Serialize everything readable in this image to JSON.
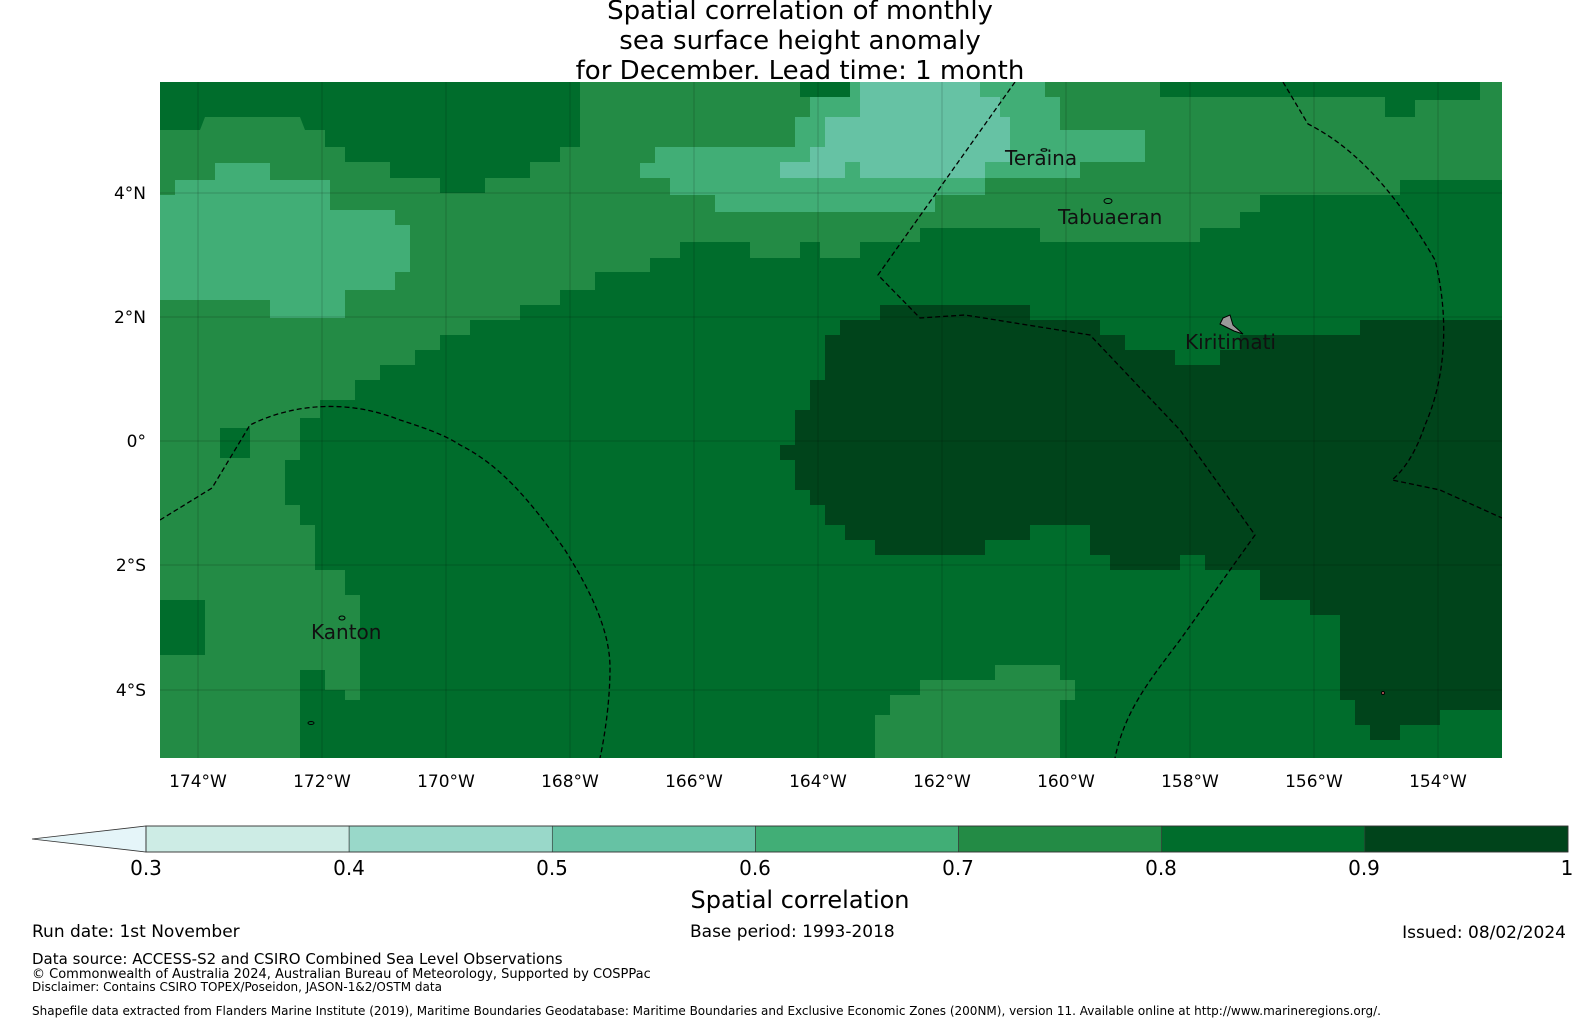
{
  "title": {
    "line1": "Spatial correlation of monthly",
    "line2": "sea surface height anomaly",
    "line3": "for December. Lead time: 1 month"
  },
  "map": {
    "lat_ticks": [
      "4°N",
      "2°N",
      "0°",
      "2°S",
      "4°S"
    ],
    "lon_ticks": [
      "174°W",
      "172°W",
      "170°W",
      "168°W",
      "166°W",
      "164°W",
      "162°W",
      "160°W",
      "158°W",
      "156°W",
      "154°W"
    ],
    "places": [
      {
        "name": "Teraina"
      },
      {
        "name": "Tabuaeran"
      },
      {
        "name": "Kiritimati"
      },
      {
        "name": "Kanton"
      }
    ]
  },
  "colorbar": {
    "label": "Spatial correlation",
    "ticks": [
      "0.3",
      "0.4",
      "0.5",
      "0.6",
      "0.7",
      "0.8",
      "0.9",
      "1"
    ],
    "colors": [
      "#cdece5",
      "#99d8c9",
      "#66c2a4",
      "#41ae76",
      "#238b45",
      "#006d2c",
      "#00441b"
    ],
    "extend_color": "#e5f5f9"
  },
  "footer": {
    "run_date": "Run date: 1st November",
    "base_period": "Base period: 1993-2018",
    "issued": "Issued: 08/02/2024",
    "data_source": "Data source: ACCESS-S2 and CSIRO Combined Sea Level Observations",
    "copyright": "© Commonwealth of Australia 2024, Australian Bureau of Meteorology, Supported by COSPPac",
    "disclaimer": "Disclaimer: Contains CSIRO TOPEX/Poseidon, JASON-1&2/OSTM data",
    "shapefile": "Shapefile data extracted from Flanders Marine Institute (2019), Maritime Boundaries Geodatabase: Maritime Boundaries and Exclusive Economic Zones (200NM), version 11. Available online at http://www.marineregions.org/."
  }
}
